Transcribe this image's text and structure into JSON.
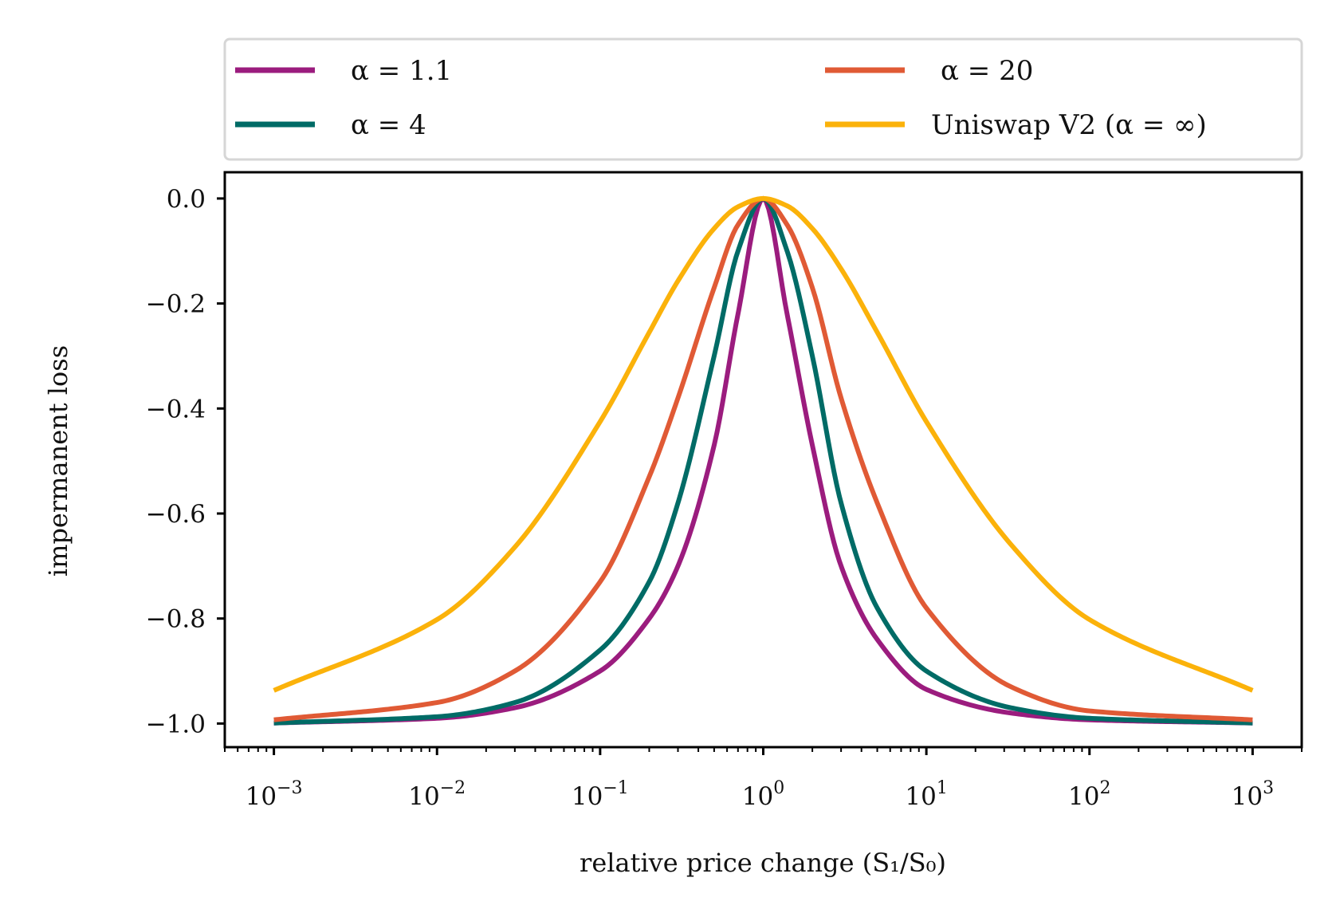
{
  "chart_data": {
    "type": "line",
    "xscale": "log",
    "x_range": [
      0.001,
      1000
    ],
    "xlim": [
      0.0005,
      2000
    ],
    "ylim": [
      -1.045,
      0.05
    ],
    "xlabel": "relative price change (S₁/S₀)",
    "ylabel": "impermanent loss",
    "x_ticks": [
      {
        "value": 0.001,
        "label": "10⁻³"
      },
      {
        "value": 0.01,
        "label": "10⁻²"
      },
      {
        "value": 0.1,
        "label": "10⁻¹"
      },
      {
        "value": 1,
        "label": "10⁰"
      },
      {
        "value": 10,
        "label": "10¹"
      },
      {
        "value": 100,
        "label": "10²"
      },
      {
        "value": 1000,
        "label": "10³"
      }
    ],
    "y_ticks": [
      {
        "value": 0.0,
        "label": "0.0"
      },
      {
        "value": -0.2,
        "label": "−0.2"
      },
      {
        "value": -0.4,
        "label": "−0.4"
      },
      {
        "value": -0.6,
        "label": "−0.6"
      },
      {
        "value": -0.8,
        "label": "−0.8"
      },
      {
        "value": -1.0,
        "label": "−1.0"
      }
    ],
    "legend_position": "top, outside",
    "series": [
      {
        "name": "α =  1.1",
        "color": "#9b1c7e",
        "x": [
          0.001,
          0.01,
          0.03,
          0.1,
          0.2,
          0.3,
          0.5,
          0.7,
          1,
          1.4,
          2,
          3,
          5,
          10,
          33,
          100,
          1000
        ],
        "y": [
          -0.999,
          -0.99,
          -0.97,
          -0.9,
          -0.8,
          -0.7,
          -0.47,
          -0.22,
          0.0,
          -0.22,
          -0.47,
          -0.7,
          -0.84,
          -0.935,
          -0.98,
          -0.993,
          -0.999
        ]
      },
      {
        "name": "α =  4",
        "color": "#006b66",
        "x": [
          0.001,
          0.01,
          0.03,
          0.1,
          0.2,
          0.3,
          0.5,
          0.7,
          1,
          1.4,
          2,
          3,
          5,
          10,
          33,
          100,
          1000
        ],
        "y": [
          -0.999,
          -0.987,
          -0.96,
          -0.86,
          -0.73,
          -0.58,
          -0.3,
          -0.1,
          0.0,
          -0.1,
          -0.3,
          -0.58,
          -0.78,
          -0.9,
          -0.97,
          -0.99,
          -0.999
        ]
      },
      {
        "name": "α =  20",
        "color": "#e05a35",
        "x": [
          0.001,
          0.01,
          0.03,
          0.1,
          0.2,
          0.3,
          0.5,
          0.7,
          1,
          1.4,
          2,
          3,
          5,
          10,
          33,
          100,
          1000
        ],
        "y": [
          -0.993,
          -0.96,
          -0.9,
          -0.73,
          -0.53,
          -0.38,
          -0.17,
          -0.05,
          0.0,
          -0.05,
          -0.17,
          -0.38,
          -0.58,
          -0.78,
          -0.93,
          -0.976,
          -0.993
        ]
      },
      {
        "name": "Uniswap V2 (α = ∞)",
        "color": "#fbb20a",
        "x": [
          0.001,
          0.01,
          0.03,
          0.1,
          0.2,
          0.3,
          0.5,
          0.7,
          1,
          1.4,
          2,
          3,
          5,
          10,
          33,
          100,
          1000
        ],
        "y": [
          -0.937,
          -0.802,
          -0.664,
          -0.425,
          -0.255,
          -0.157,
          -0.0572,
          -0.0158,
          0.0,
          -0.014,
          -0.0572,
          -0.134,
          -0.255,
          -0.425,
          -0.659,
          -0.802,
          -0.937
        ]
      }
    ]
  }
}
